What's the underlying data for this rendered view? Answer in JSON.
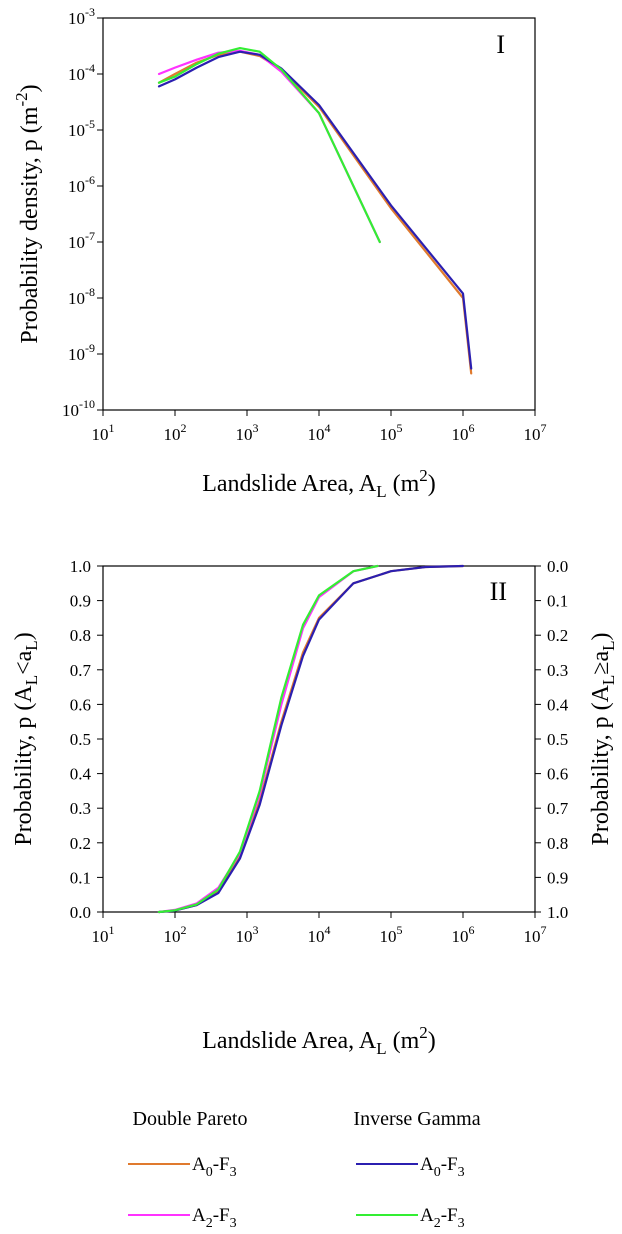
{
  "colors": {
    "dp_A0F3": "#e07a2e",
    "dp_A2F3": "#ff33ff",
    "ig_A0F3": "#2b1fb0",
    "ig_A2F3": "#33ee33"
  },
  "legend": {
    "dp_header": "Double Pareto",
    "ig_header": "Inverse Gamma",
    "dp_items": [
      "A0-F3",
      "A2-F3"
    ],
    "ig_items": [
      "A0-F3",
      "A2-F3"
    ]
  },
  "chart_data": [
    {
      "type": "line",
      "panel_label": "I",
      "xscale": "log",
      "yscale": "log",
      "xlim": [
        10,
        10000000
      ],
      "ylim": [
        1e-10,
        0.001
      ],
      "x_ticks": [
        1,
        2,
        3,
        4,
        5,
        6,
        7
      ],
      "y_ticks": [
        -10,
        -9,
        -8,
        -7,
        -6,
        -5,
        -4,
        -3
      ],
      "xlabel": "Landslide Area, A_L (m^2)",
      "ylabel": "Probability density, p (m^-2)",
      "legend": "bottom (shared)",
      "series": [
        {
          "name": "Double Pareto A0-F3",
          "color_key": "dp_A0F3",
          "x": [
            60,
            100,
            200,
            400,
            800,
            1500,
            3000,
            10000,
            100000,
            1000000,
            1300000
          ],
          "y": [
            7e-05,
            0.0001,
            0.00016,
            0.00022,
            0.00025,
            0.00021,
            0.00012,
            2.6e-05,
            4e-07,
            1e-08,
            4.5e-10
          ]
        },
        {
          "name": "Double Pareto A2-F3",
          "color_key": "dp_A2F3",
          "x": [
            60,
            100,
            200,
            400,
            800,
            1500,
            3000,
            10000,
            30000,
            70000
          ],
          "y": [
            0.0001,
            0.00013,
            0.00018,
            0.00024,
            0.00026,
            0.00022,
            0.00011,
            2e-05,
            1e-06,
            1e-07
          ]
        },
        {
          "name": "Inverse Gamma A0-F3",
          "color_key": "ig_A0F3",
          "x": [
            60,
            100,
            200,
            400,
            800,
            1500,
            3000,
            10000,
            100000,
            1000000,
            1300000
          ],
          "y": [
            6e-05,
            8e-05,
            0.00013,
            0.0002,
            0.00025,
            0.00022,
            0.000125,
            2.8e-05,
            4.5e-07,
            1.2e-08,
            5.5e-10
          ]
        },
        {
          "name": "Inverse Gamma A2-F3",
          "color_key": "ig_A2F3",
          "x": [
            60,
            100,
            200,
            400,
            800,
            1500,
            3000,
            10000,
            30000,
            70000
          ],
          "y": [
            7e-05,
            9e-05,
            0.00015,
            0.00023,
            0.00029,
            0.00025,
            0.00012,
            2e-05,
            1e-06,
            1e-07
          ]
        }
      ]
    },
    {
      "type": "line",
      "panel_label": "II",
      "xscale": "log",
      "xlim": [
        10,
        10000000
      ],
      "ylim": [
        0,
        1
      ],
      "x_ticks": [
        1,
        2,
        3,
        4,
        5,
        6,
        7
      ],
      "y_ticks_left": [
        "0.0",
        "0.1",
        "0.2",
        "0.3",
        "0.4",
        "0.5",
        "0.6",
        "0.7",
        "0.8",
        "0.9",
        "1.0"
      ],
      "y_ticks_right": [
        "1.0",
        "0.9",
        "0.8",
        "0.7",
        "0.6",
        "0.5",
        "0.4",
        "0.3",
        "0.2",
        "0.1",
        "0.0"
      ],
      "xlabel": "Landslide Area, A_L (m^2)",
      "ylabel_left": "Probability, p (A_L<a_L)",
      "ylabel_right": "Probability, p (A_L≥a_L)",
      "series": [
        {
          "name": "Double Pareto A0-F3",
          "color_key": "dp_A0F3",
          "x": [
            60,
            100,
            200,
            400,
            800,
            1500,
            3000,
            6000,
            10000,
            30000,
            100000,
            300000,
            1000000
          ],
          "y": [
            0,
            0.005,
            0.02,
            0.06,
            0.16,
            0.32,
            0.55,
            0.75,
            0.85,
            0.95,
            0.985,
            0.997,
            1.0
          ]
        },
        {
          "name": "Double Pareto A2-F3",
          "color_key": "dp_A2F3",
          "x": [
            60,
            100,
            200,
            400,
            800,
            1500,
            3000,
            6000,
            10000,
            30000,
            65000
          ],
          "y": [
            0,
            0.006,
            0.025,
            0.07,
            0.17,
            0.34,
            0.6,
            0.82,
            0.91,
            0.985,
            1.0
          ]
        },
        {
          "name": "Inverse Gamma A0-F3",
          "color_key": "ig_A0F3",
          "x": [
            60,
            100,
            200,
            400,
            800,
            1500,
            3000,
            6000,
            10000,
            30000,
            100000,
            300000,
            1000000
          ],
          "y": [
            0,
            0.004,
            0.02,
            0.055,
            0.155,
            0.31,
            0.54,
            0.74,
            0.845,
            0.95,
            0.985,
            0.997,
            1.0
          ]
        },
        {
          "name": "Inverse Gamma A2-F3",
          "color_key": "ig_A2F3",
          "x": [
            60,
            100,
            200,
            400,
            800,
            1500,
            3000,
            6000,
            10000,
            30000,
            65000
          ],
          "y": [
            0,
            0.005,
            0.022,
            0.065,
            0.175,
            0.35,
            0.62,
            0.83,
            0.915,
            0.985,
            1.0
          ]
        }
      ]
    }
  ]
}
